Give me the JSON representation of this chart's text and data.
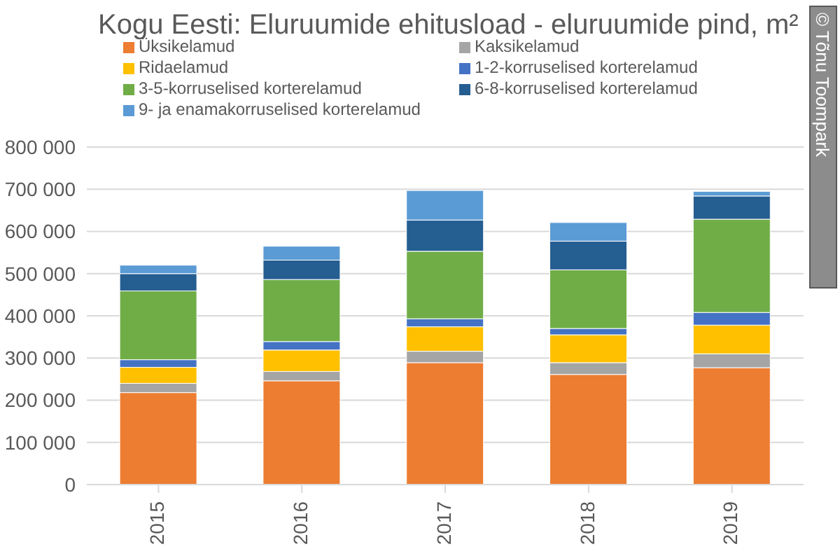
{
  "chart_data": {
    "type": "bar",
    "title": "Kogu Eesti: Eluruumide ehitusload - eluruumide pind, m²",
    "categories": [
      "2015",
      "2016",
      "2017",
      "2018",
      "2019"
    ],
    "stacked": true,
    "series": [
      {
        "name": "Üksikelamud",
        "color": "#ed7d31",
        "values": [
          218000,
          246000,
          289000,
          261000,
          277000
        ]
      },
      {
        "name": "Kaksikelamud",
        "color": "#a5a5a5",
        "values": [
          22000,
          22000,
          27000,
          28000,
          33000
        ]
      },
      {
        "name": "Ridaelamud",
        "color": "#ffc000",
        "values": [
          38000,
          51000,
          58000,
          66000,
          68000
        ]
      },
      {
        "name": "1-2-korruselised korterelamud",
        "color": "#4472c4",
        "values": [
          18000,
          20000,
          19000,
          15000,
          30000
        ]
      },
      {
        "name": "3-5-korruselised korterelamud",
        "color": "#70ad47",
        "values": [
          163000,
          147000,
          160000,
          139000,
          221000
        ]
      },
      {
        "name": "6-8-korruselised korterelamud",
        "color": "#255e91",
        "values": [
          41000,
          46000,
          74000,
          68000,
          55000
        ]
      },
      {
        "name": "9- ja enamakorruselised korterelamud",
        "color": "#5b9bd5",
        "values": [
          20000,
          33000,
          70000,
          44000,
          11000
        ]
      }
    ],
    "ylim": [
      0,
      800000
    ],
    "yticks": [
      {
        "value": 0,
        "label": "0"
      },
      {
        "value": 100000,
        "label": "100 000"
      },
      {
        "value": 200000,
        "label": "200 000"
      },
      {
        "value": 300000,
        "label": "300 000"
      },
      {
        "value": 400000,
        "label": "400 000"
      },
      {
        "value": 500000,
        "label": "500 000"
      },
      {
        "value": 600000,
        "label": "600 000"
      },
      {
        "value": 700000,
        "label": "700 000"
      },
      {
        "value": 800000,
        "label": "800 000"
      }
    ],
    "grid": "y",
    "legend": "top",
    "annotations": [
      "© Tõnu Toompark"
    ]
  }
}
